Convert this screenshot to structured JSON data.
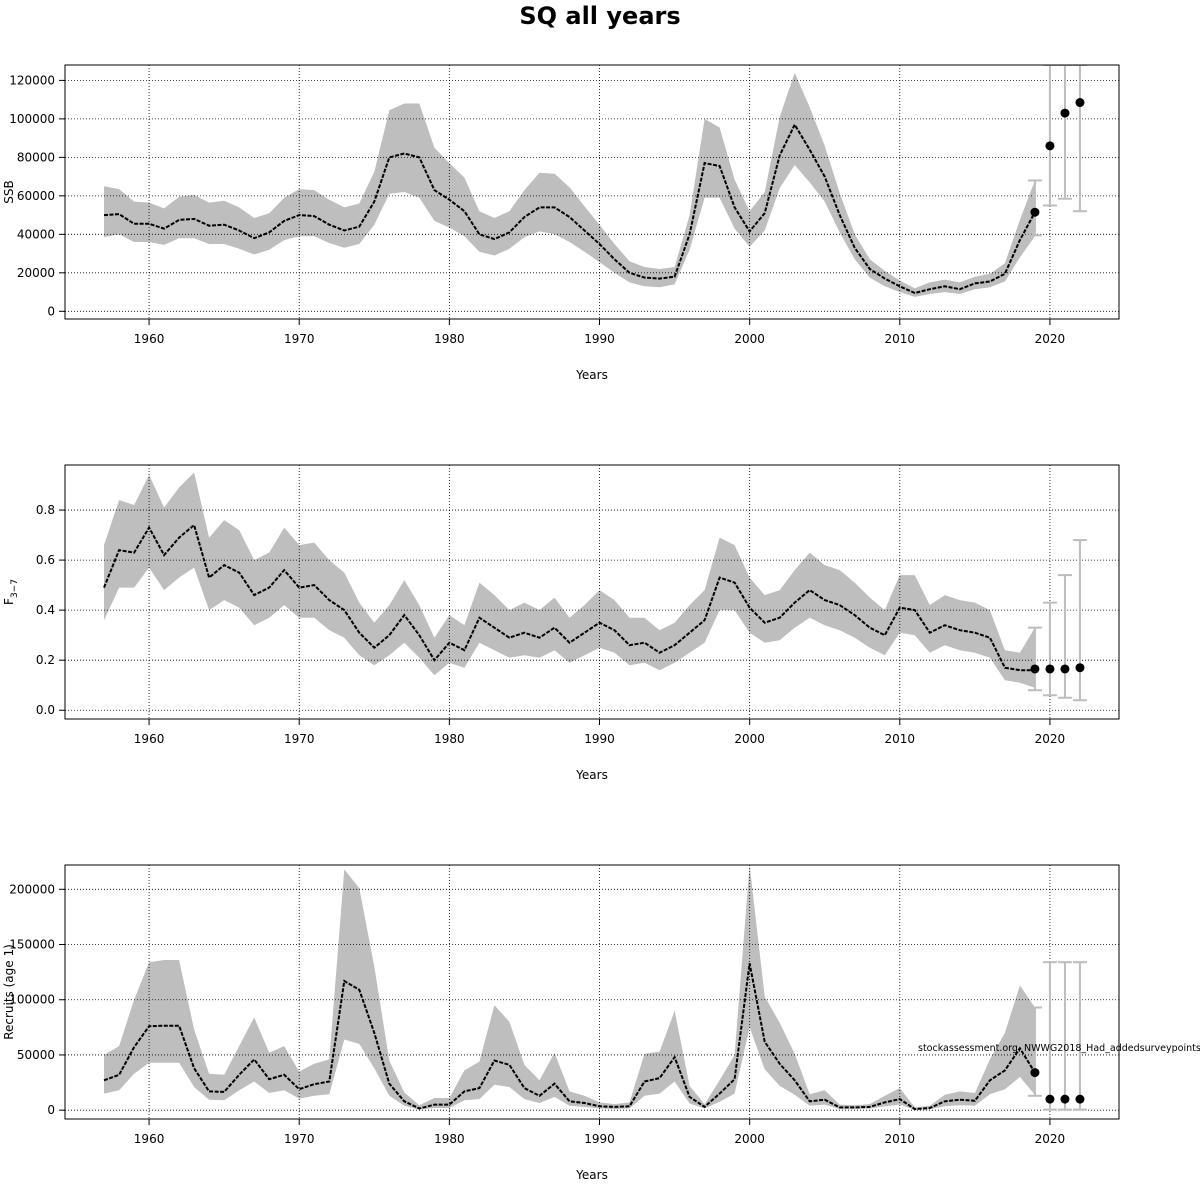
{
  "figure": {
    "title": "SQ all years",
    "watermark": "stockassessment.org, NWWG2018_Had_addedsurveypoints",
    "colors": {
      "band": "#bebebe",
      "line": "#000000",
      "grid": "#000000",
      "proj": "#bdbdbd"
    }
  },
  "chart_data": [
    {
      "type": "area",
      "xlabel": "Years",
      "ylabel": "SSB",
      "xlim": [
        1954.4,
        2024.6
      ],
      "ylim": [
        -4000,
        128000
      ],
      "xticks": [
        1960,
        1970,
        1980,
        1990,
        2000,
        2010,
        2020
      ],
      "yticks": [
        0,
        20000,
        40000,
        60000,
        80000,
        100000,
        120000
      ],
      "grid": true,
      "x": [
        1957,
        1958,
        1959,
        1960,
        1961,
        1962,
        1963,
        1964,
        1965,
        1966,
        1967,
        1968,
        1969,
        1970,
        1971,
        1972,
        1973,
        1974,
        1975,
        1976,
        1977,
        1978,
        1979,
        1980,
        1981,
        1982,
        1983,
        1984,
        1985,
        1986,
        1987,
        1988,
        1989,
        1990,
        1991,
        1992,
        1993,
        1994,
        1995,
        1996,
        1997,
        1998,
        1999,
        2000,
        2001,
        2002,
        2003,
        2004,
        2005,
        2006,
        2007,
        2008,
        2009,
        2010,
        2011,
        2012,
        2013,
        2014,
        2015,
        2016,
        2017,
        2018,
        2019
      ],
      "series": [
        {
          "role": "estimate",
          "values": [
            50000,
            50500,
            45500,
            45500,
            43000,
            47500,
            48000,
            44500,
            45000,
            42000,
            38000,
            41000,
            47000,
            50000,
            49500,
            45000,
            42000,
            44000,
            57000,
            80000,
            82000,
            80000,
            63000,
            58000,
            52000,
            40000,
            37500,
            41000,
            49000,
            54000,
            54000,
            49000,
            42000,
            35000,
            27000,
            20000,
            17500,
            17000,
            18000,
            40000,
            77000,
            75500,
            54000,
            41500,
            51000,
            81000,
            97000,
            84000,
            70000,
            50000,
            33000,
            22000,
            17000,
            13000,
            9500,
            11500,
            13000,
            11500,
            14500,
            15500,
            19500,
            37000,
            51500
          ]
        },
        {
          "role": "lower",
          "values": [
            38500,
            40000,
            36000,
            36000,
            34500,
            38000,
            38000,
            35000,
            35000,
            32500,
            29500,
            32000,
            37000,
            39000,
            39000,
            35500,
            33000,
            35000,
            45000,
            61000,
            62000,
            59000,
            47000,
            43500,
            39000,
            31000,
            29000,
            32500,
            38500,
            41500,
            40000,
            36000,
            31000,
            25500,
            20000,
            15000,
            13000,
            12500,
            14000,
            32000,
            59000,
            59000,
            43000,
            33500,
            42000,
            64000,
            76000,
            67000,
            57000,
            41000,
            27000,
            17500,
            13000,
            10000,
            7500,
            9000,
            10000,
            9000,
            11500,
            12500,
            15500,
            28000,
            39000
          ]
        },
        {
          "role": "upper",
          "values": [
            65000,
            63500,
            57000,
            56500,
            53500,
            59500,
            60500,
            56500,
            57500,
            54000,
            48500,
            51000,
            59000,
            63500,
            63000,
            58000,
            54000,
            56000,
            72500,
            104500,
            108000,
            108000,
            85000,
            77000,
            69500,
            52000,
            48500,
            52000,
            63000,
            72000,
            71500,
            64500,
            54500,
            45000,
            35000,
            26000,
            23000,
            22000,
            23000,
            50000,
            100000,
            95500,
            68500,
            52000,
            62000,
            101000,
            124000,
            106000,
            86000,
            61500,
            40000,
            27000,
            21000,
            16000,
            12000,
            15000,
            16500,
            15000,
            18000,
            19500,
            25000,
            47500,
            68000
          ]
        },
        {
          "role": "projection",
          "x": [
            2019,
            2020,
            2021,
            2022
          ],
          "values": [
            51500,
            86000,
            103000,
            108500
          ],
          "lower": [
            39500,
            55000,
            58500,
            52000
          ],
          "upper": [
            68000,
            128000,
            128000,
            128000
          ]
        }
      ]
    },
    {
      "type": "area",
      "xlabel": "Years",
      "ylabel": "F3–7",
      "xlim": [
        1954.4,
        2024.6
      ],
      "ylim": [
        -0.035,
        0.98
      ],
      "xticks": [
        1960,
        1970,
        1980,
        1990,
        2000,
        2010,
        2020
      ],
      "yticks": [
        "0.0",
        "0.2",
        "0.4",
        "0.6",
        "0.8"
      ],
      "grid": true,
      "x": [
        1957,
        1958,
        1959,
        1960,
        1961,
        1962,
        1963,
        1964,
        1965,
        1966,
        1967,
        1968,
        1969,
        1970,
        1971,
        1972,
        1973,
        1974,
        1975,
        1976,
        1977,
        1978,
        1979,
        1980,
        1981,
        1982,
        1983,
        1984,
        1985,
        1986,
        1987,
        1988,
        1989,
        1990,
        1991,
        1992,
        1993,
        1994,
        1995,
        1996,
        1997,
        1998,
        1999,
        2000,
        2001,
        2002,
        2003,
        2004,
        2005,
        2006,
        2007,
        2008,
        2009,
        2010,
        2011,
        2012,
        2013,
        2014,
        2015,
        2016,
        2017,
        2018,
        2019
      ],
      "series": [
        {
          "role": "estimate",
          "values": [
            0.49,
            0.64,
            0.63,
            0.73,
            0.62,
            0.69,
            0.74,
            0.53,
            0.58,
            0.55,
            0.46,
            0.49,
            0.56,
            0.49,
            0.5,
            0.44,
            0.4,
            0.31,
            0.25,
            0.3,
            0.38,
            0.3,
            0.2,
            0.27,
            0.24,
            0.37,
            0.33,
            0.29,
            0.31,
            0.29,
            0.33,
            0.27,
            0.31,
            0.35,
            0.32,
            0.26,
            0.27,
            0.23,
            0.26,
            0.31,
            0.36,
            0.53,
            0.51,
            0.41,
            0.35,
            0.37,
            0.43,
            0.48,
            0.44,
            0.42,
            0.38,
            0.33,
            0.3,
            0.41,
            0.4,
            0.31,
            0.34,
            0.32,
            0.31,
            0.29,
            0.17,
            0.16,
            0.16
          ]
        },
        {
          "role": "lower",
          "values": [
            0.36,
            0.49,
            0.49,
            0.57,
            0.48,
            0.53,
            0.57,
            0.4,
            0.44,
            0.41,
            0.34,
            0.37,
            0.42,
            0.37,
            0.37,
            0.32,
            0.29,
            0.22,
            0.18,
            0.22,
            0.27,
            0.21,
            0.14,
            0.19,
            0.17,
            0.27,
            0.24,
            0.21,
            0.22,
            0.21,
            0.24,
            0.19,
            0.22,
            0.25,
            0.23,
            0.18,
            0.19,
            0.16,
            0.19,
            0.23,
            0.27,
            0.4,
            0.4,
            0.31,
            0.27,
            0.28,
            0.33,
            0.37,
            0.34,
            0.32,
            0.29,
            0.25,
            0.22,
            0.31,
            0.3,
            0.23,
            0.26,
            0.24,
            0.23,
            0.21,
            0.12,
            0.11,
            0.09
          ]
        },
        {
          "role": "upper",
          "values": [
            0.66,
            0.84,
            0.82,
            0.94,
            0.81,
            0.89,
            0.95,
            0.69,
            0.76,
            0.72,
            0.6,
            0.63,
            0.73,
            0.66,
            0.67,
            0.6,
            0.55,
            0.43,
            0.35,
            0.42,
            0.52,
            0.42,
            0.29,
            0.38,
            0.34,
            0.51,
            0.46,
            0.4,
            0.43,
            0.4,
            0.45,
            0.37,
            0.42,
            0.48,
            0.44,
            0.37,
            0.37,
            0.32,
            0.35,
            0.42,
            0.48,
            0.69,
            0.66,
            0.53,
            0.46,
            0.48,
            0.56,
            0.63,
            0.58,
            0.56,
            0.51,
            0.45,
            0.4,
            0.54,
            0.54,
            0.42,
            0.46,
            0.44,
            0.43,
            0.4,
            0.24,
            0.23,
            0.33
          ]
        },
        {
          "role": "projection",
          "x": [
            2019,
            2020,
            2021,
            2022
          ],
          "values": [
            0.165,
            0.165,
            0.165,
            0.17
          ],
          "lower": [
            0.08,
            0.06,
            0.05,
            0.04
          ],
          "upper": [
            0.33,
            0.43,
            0.54,
            0.68
          ]
        }
      ]
    },
    {
      "type": "area",
      "xlabel": "Years",
      "ylabel": "Recruits (age 1)",
      "xlim": [
        1954.4,
        2024.6
      ],
      "ylim": [
        -8000,
        222000
      ],
      "xticks": [
        1960,
        1970,
        1980,
        1990,
        2000,
        2010,
        2020
      ],
      "yticks": [
        0,
        50000,
        100000,
        150000,
        200000
      ],
      "grid": true,
      "x": [
        1957,
        1958,
        1959,
        1960,
        1961,
        1962,
        1963,
        1964,
        1965,
        1966,
        1967,
        1968,
        1969,
        1970,
        1971,
        1972,
        1973,
        1974,
        1975,
        1976,
        1977,
        1978,
        1979,
        1980,
        1981,
        1982,
        1983,
        1984,
        1985,
        1986,
        1987,
        1988,
        1989,
        1990,
        1991,
        1992,
        1993,
        1994,
        1995,
        1996,
        1997,
        1998,
        1999,
        2000,
        2001,
        2002,
        2003,
        2004,
        2005,
        2006,
        2007,
        2008,
        2009,
        2010,
        2011,
        2012,
        2013,
        2014,
        2015,
        2016,
        2017,
        2018,
        2019
      ],
      "series": [
        {
          "role": "estimate",
          "values": [
            27000,
            32000,
            57000,
            76000,
            76500,
            76500,
            38000,
            17000,
            16500,
            32000,
            46000,
            28000,
            32000,
            19000,
            23500,
            26000,
            117000,
            109000,
            70000,
            24000,
            8000,
            1500,
            5000,
            5000,
            17000,
            20000,
            45000,
            41000,
            20000,
            13000,
            24000,
            8000,
            6500,
            3500,
            3000,
            3500,
            26000,
            29000,
            48000,
            12000,
            3000,
            15000,
            28000,
            133000,
            62000,
            42000,
            27000,
            8000,
            9500,
            2500,
            2500,
            3000,
            7000,
            10000,
            1000,
            2000,
            8000,
            9500,
            8500,
            27000,
            36000,
            56000,
            34000
          ]
        },
        {
          "role": "lower",
          "values": [
            15000,
            18000,
            33000,
            43000,
            43000,
            43000,
            21000,
            9500,
            9000,
            18000,
            26000,
            15500,
            18000,
            10500,
            13000,
            14500,
            64000,
            60000,
            38000,
            13000,
            4000,
            500,
            2000,
            2000,
            9000,
            10000,
            23000,
            21000,
            10000,
            6500,
            12000,
            4000,
            3000,
            1500,
            1000,
            1500,
            13000,
            15000,
            26000,
            6000,
            1500,
            7500,
            15000,
            75000,
            37000,
            22000,
            14000,
            4000,
            5000,
            1000,
            1000,
            1500,
            3500,
            5000,
            300,
            800,
            3500,
            4500,
            4000,
            14500,
            19000,
            30000,
            14000
          ]
        },
        {
          "role": "upper",
          "values": [
            50000,
            58000,
            100000,
            134000,
            136000,
            136000,
            73000,
            33000,
            32000,
            58000,
            84000,
            52000,
            58000,
            35000,
            42000,
            46000,
            218000,
            201000,
            130000,
            45000,
            16000,
            4500,
            11000,
            11000,
            36000,
            44000,
            95000,
            80000,
            41000,
            27000,
            52000,
            17000,
            13000,
            7000,
            5500,
            7000,
            51000,
            53000,
            90000,
            22000,
            5500,
            27000,
            50000,
            222000,
            103000,
            79000,
            51000,
            14500,
            18000,
            5000,
            4500,
            5500,
            13000,
            20000,
            2500,
            4000,
            14000,
            17000,
            15500,
            46000,
            70000,
            113000,
            93000
          ]
        },
        {
          "role": "projection",
          "x": [
            2019,
            2020,
            2021,
            2022
          ],
          "values": [
            34000,
            10000,
            10000,
            10000
          ],
          "lower": [
            13000,
            500,
            500,
            500
          ],
          "upper": [
            93000,
            134000,
            134000,
            134000
          ]
        }
      ]
    }
  ]
}
